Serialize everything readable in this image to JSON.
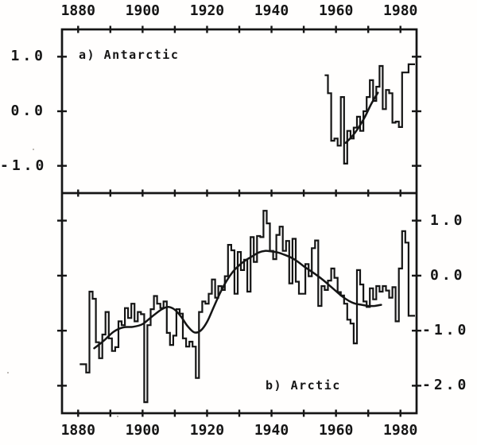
{
  "figure": {
    "kind": "scanned two-panel polar temperature anomaly chart",
    "background": "#fffefd",
    "ink_color": "#151515"
  },
  "chart_data": [
    {
      "id": "panel-a",
      "type": "line",
      "title": "a) Antarctic",
      "position": "top",
      "grid": false,
      "xlim": [
        1875,
        1985
      ],
      "ylim": [
        -1.5,
        1.5
      ],
      "x_tick_labels": [
        1880,
        1900,
        1920,
        1940,
        1960,
        1980
      ],
      "x_minor_tick_step": 10,
      "y_label_side": "left",
      "y_ticks": [
        {
          "value": 1.0,
          "label": "1.0"
        },
        {
          "value": 0.0,
          "label": "0.0"
        },
        {
          "value": -1.0,
          "label": "-1.0"
        }
      ],
      "series": [
        {
          "name": "annual temperature anomaly",
          "render": "step",
          "start_year": 1957,
          "values": [
            0.66,
            0.33,
            -0.54,
            -0.5,
            -0.63,
            0.26,
            -0.96,
            -0.36,
            -0.5,
            -0.3,
            -0.1,
            -0.36,
            0.0,
            0.26,
            0.57,
            0.19,
            0.45,
            0.83,
            0.04,
            0.39,
            0.33,
            -0.21,
            -0.19,
            -0.29,
            0.71,
            0.71,
            0.86,
            0.86
          ]
        },
        {
          "name": "smoothed trend",
          "render": "smooth",
          "points": [
            [
              1963,
              -0.58
            ],
            [
              1965,
              -0.46
            ],
            [
              1967,
              -0.3
            ],
            [
              1969,
              -0.1
            ],
            [
              1971,
              0.14
            ],
            [
              1973,
              0.34
            ]
          ]
        }
      ]
    },
    {
      "id": "panel-b",
      "type": "line",
      "title": "b) Arctic",
      "position": "bottom",
      "grid": false,
      "xlim": [
        1875,
        1985
      ],
      "ylim": [
        -2.5,
        1.5
      ],
      "x_tick_labels": [
        1880,
        1900,
        1920,
        1940,
        1960,
        1980
      ],
      "x_minor_tick_step": 10,
      "y_label_side": "right",
      "y_ticks": [
        {
          "value": 1.0,
          "label": "1.0"
        },
        {
          "value": 0.0,
          "label": "0.0"
        },
        {
          "value": -1.0,
          "label": "-1.0"
        },
        {
          "value": -2.0,
          "label": "-2.0"
        }
      ],
      "series": [
        {
          "name": "annual temperature anomaly",
          "render": "step",
          "start_year": 1881,
          "values": [
            -1.61,
            -1.61,
            -1.76,
            -0.29,
            -0.42,
            -1.21,
            -1.5,
            -1.07,
            -0.66,
            -1.14,
            -1.37,
            -1.3,
            -0.83,
            -0.9,
            -0.59,
            -0.77,
            -0.51,
            -0.83,
            -0.66,
            -0.7,
            -2.3,
            -0.9,
            -0.61,
            -0.37,
            -0.51,
            -0.59,
            -0.47,
            -1.04,
            -1.26,
            -1.09,
            -0.61,
            -0.69,
            -1.14,
            -1.29,
            -1.2,
            -1.29,
            -1.86,
            -0.66,
            -0.47,
            -0.51,
            -0.33,
            -0.07,
            -0.4,
            -0.19,
            -0.26,
            -0.01,
            0.56,
            0.46,
            -0.33,
            0.43,
            0.1,
            0.29,
            -0.29,
            0.7,
            0.25,
            0.72,
            0.7,
            1.18,
            0.95,
            0.45,
            0.3,
            0.74,
            0.89,
            0.45,
            0.63,
            -0.14,
            0.67,
            -0.11,
            -0.33,
            -0.33,
            0.21,
            -0.01,
            0.5,
            0.64,
            -0.55,
            -0.19,
            -0.26,
            -0.09,
            0.13,
            -0.04,
            -0.3,
            -0.36,
            -0.51,
            -0.8,
            -0.87,
            -1.23,
            0.1,
            -0.16,
            -0.47,
            -0.57,
            -0.23,
            -0.43,
            -0.19,
            -0.29,
            -0.19,
            -0.27,
            -0.4,
            -0.21,
            -0.83,
            0.13,
            0.81,
            0.6,
            -0.73,
            -0.73
          ]
        },
        {
          "name": "smoothed trend",
          "render": "smooth",
          "points": [
            [
              1885,
              -1.32
            ],
            [
              1888,
              -1.18
            ],
            [
              1891,
              -1.02
            ],
            [
              1894,
              -0.94
            ],
            [
              1897,
              -0.93
            ],
            [
              1900,
              -0.88
            ],
            [
              1903,
              -0.74
            ],
            [
              1906,
              -0.61
            ],
            [
              1908,
              -0.57
            ],
            [
              1910,
              -0.62
            ],
            [
              1912,
              -0.75
            ],
            [
              1914,
              -0.92
            ],
            [
              1916,
              -1.03
            ],
            [
              1918,
              -1.0
            ],
            [
              1920,
              -0.84
            ],
            [
              1922,
              -0.58
            ],
            [
              1924,
              -0.32
            ],
            [
              1926,
              -0.1
            ],
            [
              1928,
              0.07
            ],
            [
              1930,
              0.19
            ],
            [
              1932,
              0.28
            ],
            [
              1934,
              0.35
            ],
            [
              1936,
              0.42
            ],
            [
              1938,
              0.45
            ],
            [
              1940,
              0.44
            ],
            [
              1942,
              0.42
            ],
            [
              1944,
              0.38
            ],
            [
              1946,
              0.33
            ],
            [
              1948,
              0.26
            ],
            [
              1950,
              0.17
            ],
            [
              1952,
              0.09
            ],
            [
              1954,
              0.01
            ],
            [
              1956,
              -0.08
            ],
            [
              1958,
              -0.18
            ],
            [
              1960,
              -0.28
            ],
            [
              1962,
              -0.38
            ],
            [
              1964,
              -0.46
            ],
            [
              1966,
              -0.51
            ],
            [
              1968,
              -0.53
            ],
            [
              1970,
              -0.55
            ],
            [
              1972,
              -0.55
            ],
            [
              1974,
              -0.53
            ]
          ]
        }
      ]
    }
  ]
}
